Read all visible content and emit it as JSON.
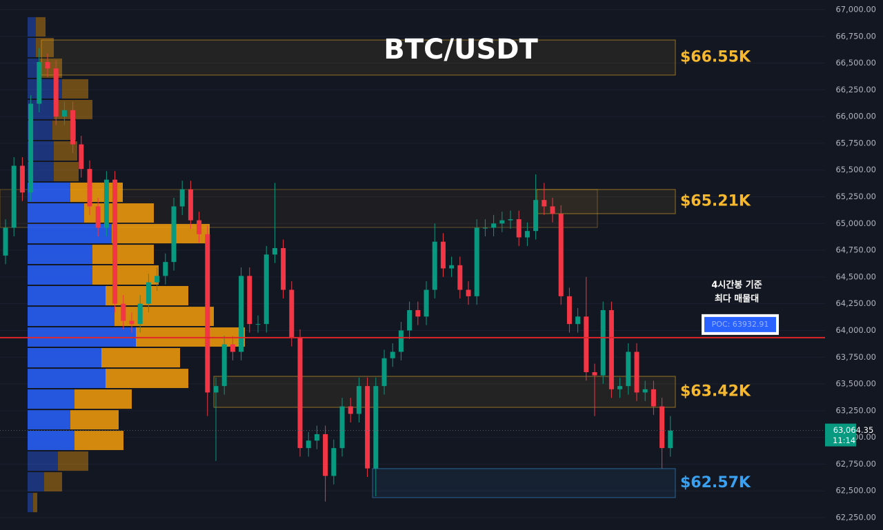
{
  "chart_data": {
    "type": "candlestick",
    "title": "BTC/USDT",
    "ylim": [
      62134,
      67090
    ],
    "yticks": [
      {
        "value": 62250,
        "label": "62,250.00"
      },
      {
        "value": 62500,
        "label": "62,500.00"
      },
      {
        "value": 62750,
        "label": "62,750.00"
      },
      {
        "value": 63000,
        "label": "63,000.00"
      },
      {
        "value": 63250,
        "label": "63,250.00"
      },
      {
        "value": 63500,
        "label": "63,500.00"
      },
      {
        "value": 63750,
        "label": "63,750.00"
      },
      {
        "value": 64000,
        "label": "64,000.00"
      },
      {
        "value": 64250,
        "label": "64,250.00"
      },
      {
        "value": 64500,
        "label": "64,500.00"
      },
      {
        "value": 64750,
        "label": "64,750.00"
      },
      {
        "value": 65000,
        "label": "65,000.00"
      },
      {
        "value": 65250,
        "label": "65,250.00"
      },
      {
        "value": 65500,
        "label": "65,500.00"
      },
      {
        "value": 65750,
        "label": "65,750.00"
      },
      {
        "value": 66000,
        "label": "66,000.00"
      },
      {
        "value": 66250,
        "label": "66,250.00"
      },
      {
        "value": 66500,
        "label": "66,500.00"
      },
      {
        "value": 66750,
        "label": "66,750.00"
      },
      {
        "value": 67000,
        "label": "67,000.00"
      }
    ],
    "grid": true,
    "up_color": "#089981",
    "down_color": "#f23645",
    "open": [
      64700,
      64960,
      65540,
      65290,
      66120,
      66510,
      66450,
      66000,
      66060,
      65740,
      65510,
      65160,
      64960,
      65410,
      64250,
      64090,
      64060,
      64250,
      64450,
      64510,
      64640,
      65160,
      65320,
      65030,
      64900,
      63420,
      63480,
      63870,
      63800,
      64510,
      64060,
      64060,
      64710,
      64770,
      64380,
      63930,
      62900,
      62970,
      63030,
      62640,
      62900,
      63290,
      63220,
      63480,
      62710,
      63480,
      63740,
      63800,
      64000,
      64190,
      64130,
      64380,
      64830,
      64580,
      64610,
      64380,
      64320,
      64960,
      64960,
      65000,
      65030,
      65040,
      64870,
      64930,
      65220,
      65160,
      65090,
      64320,
      64060,
      64130,
      63610,
      63580,
      64190,
      63450,
      63480,
      63800,
      63420,
      63450,
      63290,
      62900
    ],
    "high": [
      65040,
      65620,
      65620,
      66200,
      66640,
      66590,
      66530,
      66140,
      66140,
      65820,
      65590,
      65240,
      65490,
      65490,
      64330,
      64170,
      64330,
      64530,
      64590,
      64720,
      65240,
      65400,
      65400,
      65110,
      64980,
      63560,
      63950,
      63950,
      64590,
      64590,
      64140,
      64790,
      65380,
      64850,
      64460,
      64010,
      63050,
      63110,
      63110,
      62980,
      63370,
      63370,
      63560,
      63560,
      63560,
      63820,
      63880,
      64080,
      64270,
      64270,
      64460,
      65000,
      64910,
      64690,
      64690,
      64460,
      65040,
      65040,
      65080,
      65110,
      65120,
      65120,
      65010,
      65460,
      65380,
      65240,
      65170,
      64400,
      64210,
      64500,
      63690,
      64270,
      64270,
      63560,
      63880,
      63880,
      63530,
      63530,
      63370,
      63200
    ],
    "low": [
      64620,
      64880,
      65210,
      65210,
      66040,
      66370,
      65920,
      65920,
      65660,
      65430,
      65080,
      64880,
      64880,
      64170,
      64010,
      63980,
      63980,
      64170,
      64370,
      64430,
      64560,
      65080,
      64950,
      64820,
      63200,
      62780,
      63400,
      63720,
      63720,
      63980,
      63980,
      63980,
      64630,
      64300,
      63850,
      62820,
      62820,
      62890,
      62400,
      62560,
      62820,
      63140,
      63140,
      62630,
      62450,
      63400,
      63660,
      63720,
      63920,
      64050,
      64050,
      64300,
      64500,
      64500,
      64300,
      64240,
      64240,
      64880,
      64880,
      64920,
      64950,
      64790,
      64790,
      64850,
      65080,
      65010,
      64240,
      63980,
      63980,
      63530,
      63200,
      63500,
      63370,
      63370,
      63400,
      63340,
      63340,
      63210,
      62710,
      62820
    ],
    "close": [
      64960,
      65540,
      65290,
      66120,
      66510,
      66450,
      66000,
      66060,
      65740,
      65510,
      65160,
      64960,
      65410,
      64250,
      64090,
      64060,
      64250,
      64450,
      64510,
      64640,
      65160,
      65320,
      65030,
      64900,
      63420,
      63480,
      63870,
      63800,
      64510,
      64060,
      64060,
      64710,
      64770,
      64380,
      63930,
      62900,
      62970,
      63030,
      62640,
      62900,
      63290,
      63220,
      63480,
      62710,
      63480,
      63740,
      63800,
      64000,
      64190,
      64130,
      64380,
      64830,
      64580,
      64610,
      64380,
      64320,
      64960,
      64960,
      65000,
      65030,
      65040,
      64870,
      64930,
      65220,
      65160,
      65090,
      64320,
      64060,
      64130,
      63610,
      63580,
      64190,
      63450,
      63480,
      63800,
      63420,
      63450,
      63290,
      62900,
      63064.35
    ],
    "volume_profile": {
      "bins": [
        66936,
        66742,
        66549,
        66356,
        66162,
        65969,
        65775,
        65582,
        65389,
        65195,
        65002,
        64808,
        64615,
        64422,
        64228,
        64035,
        63842,
        63648,
        63455,
        63261,
        63068,
        62875,
        62681,
        62488,
        62294
      ],
      "buy": [
        12,
        12,
        18,
        50,
        38,
        36,
        38,
        38,
        62,
        82,
        122,
        94,
        94,
        113,
        126,
        157,
        107,
        113,
        68,
        62,
        68,
        44,
        24,
        8
      ],
      "sell": [
        14,
        26,
        32,
        38,
        56,
        34,
        34,
        36,
        76,
        101,
        142,
        89,
        96,
        120,
        144,
        158,
        114,
        120,
        83,
        70,
        71,
        44,
        26,
        6
      ],
      "value_area": [
        62875,
        65389
      ],
      "buy_color": "#2962ff",
      "sell_color": "#f59e0b"
    },
    "zones": [
      {
        "label": "$66.55K",
        "high": 66716,
        "low": 66388,
        "color": "#f5b82e"
      },
      {
        "label": "$65.21K",
        "high": 65318,
        "low": 65092,
        "color": "#f5b82e"
      },
      {
        "label": "$63.42K",
        "high": 63571,
        "low": 63281,
        "color": "#f5b82e"
      },
      {
        "label": "$62.57K",
        "high": 62708,
        "low": 62437,
        "color": "#3aa0f0"
      }
    ],
    "poc": {
      "value": 63932.91,
      "label": "POC: 63932.91",
      "color": "#e0262b"
    },
    "annotation": [
      "4시간봉 기준",
      "최다 매물대"
    ],
    "current_price": {
      "value": 63064.35,
      "label": "63,064.35",
      "countdown": "11:14",
      "color": "#089981"
    }
  }
}
